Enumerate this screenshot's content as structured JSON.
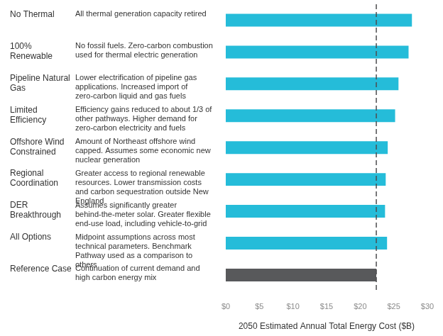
{
  "chart_data": {
    "type": "bar",
    "orientation": "horizontal",
    "categories": [
      "No Thermal",
      "100% Renewable",
      "Pipeline Natural Gas",
      "Limited Efficiency",
      "Offshore Wind Constrained",
      "Regional Coordination",
      "DER Breakthrough",
      "All Options",
      "Reference Case"
    ],
    "descriptions": [
      "All thermal generation capacity retired",
      "No fossil fuels. Zero-carbon combustion used for thermal electric generation",
      "Lower electrification of pipeline gas applications. Increased import of zero-carbon liquid and gas fuels",
      "Efficiency gains reduced to about 1/3 of other pathways. Higher demand for zero-carbon electricity and fuels",
      "Amount of Northeast offshore wind capped. Assumes some economic new nuclear generation",
      "Greater access to regional renewable resources. Lower transmission costs and carbon sequestration outside New England",
      "Assumes significantly greater behind-the-meter solar. Greater flexible end-use load, including vehicle-to-grid",
      "Midpoint assumptions across most technical parameters. Benchmark Pathway used as a comparison to others",
      "Continuation of current demand and high carbon energy mix"
    ],
    "values": [
      27.7,
      27.2,
      25.7,
      25.2,
      24.1,
      23.8,
      23.7,
      24.0,
      22.4
    ],
    "colors": [
      "#25bcd9",
      "#25bcd9",
      "#25bcd9",
      "#25bcd9",
      "#25bcd9",
      "#25bcd9",
      "#25bcd9",
      "#25bcd9",
      "#58595b"
    ],
    "reference_line": 22.4,
    "xlabel": "2050 Estimated Annual Total Energy Cost ($B)",
    "xlim": [
      0,
      30
    ],
    "xticks": [
      {
        "value": 0,
        "label": "$0"
      },
      {
        "value": 5,
        "label": "$5"
      },
      {
        "value": 10,
        "label": "$10"
      },
      {
        "value": 15,
        "label": "$15"
      },
      {
        "value": 20,
        "label": "$20"
      },
      {
        "value": 25,
        "label": "$25"
      },
      {
        "value": 30,
        "label": "$30"
      }
    ],
    "grid": false
  }
}
